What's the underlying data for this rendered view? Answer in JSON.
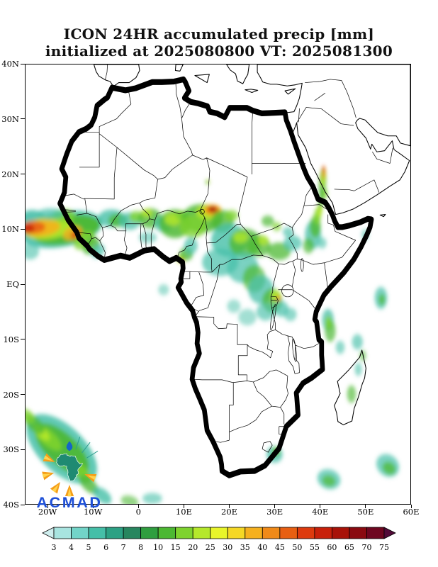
{
  "title": {
    "line1": "ICON 24HR accumulated precip [mm]",
    "line2": "initialized at 2025080800 VT: 2025081300"
  },
  "logo": {
    "text": "ACMAD"
  },
  "axes": {
    "x": [
      {
        "label": "20W",
        "lon": -20
      },
      {
        "label": "10W",
        "lon": -10
      },
      {
        "label": "0",
        "lon": 0
      },
      {
        "label": "10E",
        "lon": 10
      },
      {
        "label": "20E",
        "lon": 20
      },
      {
        "label": "30E",
        "lon": 30
      },
      {
        "label": "40E",
        "lon": 40
      },
      {
        "label": "50E",
        "lon": 50
      },
      {
        "label": "60E",
        "lon": 60
      }
    ],
    "y": [
      {
        "label": "40N",
        "lat": 40
      },
      {
        "label": "30N",
        "lat": 30
      },
      {
        "label": "20N",
        "lat": 20
      },
      {
        "label": "10N",
        "lat": 10
      },
      {
        "label": "EQ",
        "lat": 0
      },
      {
        "label": "10S",
        "lat": -10
      },
      {
        "label": "20S",
        "lat": -20
      },
      {
        "label": "30S",
        "lat": -30
      },
      {
        "label": "40S",
        "lat": -40
      }
    ]
  },
  "colorbar": {
    "labels": [
      "3",
      "4",
      "5",
      "6",
      "7",
      "8",
      "10",
      "15",
      "20",
      "25",
      "30",
      "35",
      "40",
      "45",
      "50",
      "55",
      "60",
      "65",
      "70",
      "75"
    ],
    "colors": [
      "#cfeeee",
      "#a8e4e0",
      "#72d4c8",
      "#45bfa8",
      "#2ca184",
      "#27865f",
      "#2f9e3f",
      "#4cb832",
      "#7ed32e",
      "#b5e82b",
      "#e8f52a",
      "#f5d825",
      "#f5b01e",
      "#f08a18",
      "#e85f12",
      "#dd3a0e",
      "#c8200a",
      "#a81208",
      "#8a0a10",
      "#6e0620",
      "#520a38"
    ]
  },
  "chart_data": {
    "type": "heatmap",
    "title": "ICON 24HR accumulated precip [mm]",
    "subtitle": "initialized at 2025080800 VT: 2025081300",
    "model": "ICON",
    "accumulation": "24HR",
    "units": "mm",
    "init_time": "2025080800",
    "valid_time": "2025081300",
    "lon_range": [
      -25,
      60
    ],
    "lat_range": [
      -40,
      40
    ],
    "levels": [
      3,
      4,
      5,
      6,
      7,
      8,
      10,
      15,
      20,
      25,
      30,
      35,
      40,
      45,
      50,
      55,
      60,
      65,
      70,
      75
    ],
    "precip_features": [
      [
        -17,
        10,
        9,
        3.2,
        -8,
        "#45bfa8",
        0.9
      ],
      [
        -23.5,
        11,
        3.5,
        2.5,
        0,
        "#45bfa8",
        0.9
      ],
      [
        -16,
        9.9,
        7.5,
        2.6,
        -8,
        "#4cb832",
        0.95
      ],
      [
        -20,
        10.2,
        5.5,
        2,
        -5,
        "#b5e82b",
        0.9
      ],
      [
        -21.5,
        10.2,
        4.2,
        1.5,
        -5,
        "#f5b01e",
        0.9
      ],
      [
        -23.2,
        10.4,
        2.6,
        1.1,
        0,
        "#e85f12",
        0.9
      ],
      [
        -24.4,
        10.1,
        1.4,
        0.8,
        0,
        "#c8200a",
        0.9
      ],
      [
        -14.6,
        9.3,
        2.2,
        1.2,
        -15,
        "#f5b01e",
        0.85
      ],
      [
        -13.8,
        9,
        1.2,
        0.7,
        -15,
        "#dd3a0e",
        0.85
      ],
      [
        -12,
        8,
        2.5,
        1.5,
        -25,
        "#7ed32e",
        0.8
      ],
      [
        -10.5,
        7,
        2,
        1.4,
        -30,
        "#4cb832",
        0.8
      ],
      [
        -16.5,
        12.5,
        2.5,
        1.2,
        0,
        "#7ed32e",
        0.7
      ],
      [
        -19.5,
        12.8,
        3,
        1,
        0,
        "#45bfa8",
        0.7
      ],
      [
        -9,
        6,
        1.6,
        1.1,
        -30,
        "#45bfa8",
        0.7
      ],
      [
        -24,
        6,
        2,
        1.5,
        0,
        "#45bfa8",
        0.6
      ],
      [
        -6,
        12,
        3,
        1.6,
        0,
        "#45bfa8",
        0.8
      ],
      [
        -4.5,
        11.6,
        2.2,
        1.2,
        0,
        "#4cb832",
        0.8
      ],
      [
        -2,
        11.5,
        2.4,
        1.6,
        0,
        "#45bfa8",
        0.75
      ],
      [
        -0.5,
        12.3,
        1.6,
        1,
        0,
        "#7ed32e",
        0.8
      ],
      [
        2.5,
        12,
        2.6,
        1.8,
        0,
        "#4cb832",
        0.8
      ],
      [
        1.8,
        13,
        1.2,
        0.7,
        0,
        "#b5e82b",
        0.85
      ],
      [
        5.5,
        11,
        2,
        1.5,
        0,
        "#45bfa8",
        0.75
      ],
      [
        8,
        11,
        3.5,
        2.6,
        0,
        "#4cb832",
        0.85
      ],
      [
        7.5,
        11.8,
        1.8,
        1.1,
        0,
        "#b5e82b",
        0.85
      ],
      [
        9.5,
        12.5,
        1.4,
        0.9,
        0,
        "#7ed32e",
        0.8
      ],
      [
        2,
        8.5,
        2,
        1,
        0,
        "#45bfa8",
        0.55
      ],
      [
        14,
        12,
        4.5,
        2.6,
        0,
        "#4cb832",
        0.85
      ],
      [
        15.5,
        13.1,
        2.8,
        1.4,
        0,
        "#b5e82b",
        0.9
      ],
      [
        16.3,
        13.5,
        2,
        1,
        0,
        "#f5b01e",
        0.9
      ],
      [
        16.3,
        13.6,
        1.3,
        0.65,
        0,
        "#dd3a0e",
        0.95
      ],
      [
        16.3,
        13.65,
        0.7,
        0.38,
        0,
        "#8a0a10",
        0.95
      ],
      [
        12,
        10.5,
        3,
        2,
        0,
        "#7ed32e",
        0.8
      ],
      [
        18.5,
        11.5,
        2.5,
        2,
        0,
        "#4cb832",
        0.8
      ],
      [
        20.5,
        12.5,
        1.5,
        1,
        0,
        "#7ed32e",
        0.75
      ],
      [
        15.2,
        18.6,
        0.5,
        0.4,
        0,
        "#4cb832",
        0.85
      ],
      [
        15.3,
        18.7,
        0.25,
        0.2,
        0,
        "#e8f52a",
        0.9
      ],
      [
        20,
        8,
        4,
        3,
        0,
        "#45bfa8",
        0.8
      ],
      [
        23.5,
        7.5,
        3.5,
        2.6,
        0,
        "#4cb832",
        0.8
      ],
      [
        22.5,
        8.5,
        1.6,
        1,
        0,
        "#b5e82b",
        0.8
      ],
      [
        26.5,
        7,
        2.6,
        2,
        0,
        "#4cb832",
        0.75
      ],
      [
        27.5,
        8,
        1.2,
        0.8,
        0,
        "#b5e82b",
        0.8
      ],
      [
        18,
        4,
        4,
        2.5,
        0,
        "#45bfa8",
        0.7
      ],
      [
        23,
        3,
        3.5,
        2.8,
        0,
        "#45bfa8",
        0.7
      ],
      [
        25.5,
        1,
        2.5,
        2.5,
        0,
        "#4cb832",
        0.7
      ],
      [
        27,
        -1,
        2.8,
        2.6,
        0,
        "#45bfa8",
        0.75
      ],
      [
        29.5,
        -3,
        2.2,
        2.2,
        0,
        "#4cb832",
        0.75
      ],
      [
        30.3,
        -2,
        1.1,
        0.9,
        0,
        "#b5e82b",
        0.85
      ],
      [
        30.8,
        -2.6,
        0.55,
        0.45,
        0,
        "#f08a18",
        0.9
      ],
      [
        31.5,
        -4.5,
        1.6,
        1.4,
        0,
        "#45bfa8",
        0.7
      ],
      [
        33.5,
        -5.5,
        1.4,
        1.2,
        0,
        "#45bfa8",
        0.6
      ],
      [
        28,
        -5,
        2,
        1.6,
        0,
        "#45bfa8",
        0.65
      ],
      [
        24,
        -6,
        2,
        1.5,
        0,
        "#45bfa8",
        0.5
      ],
      [
        21,
        -4,
        1.5,
        1.2,
        0,
        "#45bfa8",
        0.5
      ],
      [
        31,
        6,
        2.6,
        1.6,
        0,
        "#4cb832",
        0.75
      ],
      [
        34,
        7.5,
        2,
        1.4,
        0,
        "#45bfa8",
        0.7
      ],
      [
        33,
        9.5,
        1.2,
        0.9,
        0,
        "#45bfa8",
        0.65
      ],
      [
        28.5,
        11.5,
        1.4,
        1,
        0,
        "#4cb832",
        0.7
      ],
      [
        30.5,
        10.5,
        1,
        0.8,
        0,
        "#7ed32e",
        0.7
      ],
      [
        9.3,
        4.6,
        1,
        0.7,
        0,
        "#b5e82b",
        0.85
      ],
      [
        9.5,
        4.3,
        0.5,
        0.35,
        0,
        "#f08a18",
        0.85
      ],
      [
        10.5,
        5.5,
        1.5,
        1.2,
        0,
        "#4cb832",
        0.8
      ],
      [
        11.5,
        7,
        1.5,
        1.5,
        0,
        "#45bfa8",
        0.7
      ],
      [
        5.5,
        -1,
        1.2,
        1,
        0,
        "#45bfa8",
        0.5
      ],
      [
        38.5,
        9,
        1.8,
        2.6,
        0,
        "#45bfa8",
        0.75
      ],
      [
        39,
        10.5,
        1.2,
        2,
        0,
        "#4cb832",
        0.8
      ],
      [
        39.5,
        12.5,
        0.8,
        1.6,
        10,
        "#7ed32e",
        0.85
      ],
      [
        40,
        13.5,
        0.6,
        1.2,
        10,
        "#b5e82b",
        0.85
      ],
      [
        40.3,
        15.5,
        0.5,
        1.8,
        8,
        "#4cb832",
        0.8
      ],
      [
        40.6,
        18.5,
        0.8,
        2.8,
        5,
        "#4cb832",
        0.8
      ],
      [
        40.8,
        19.5,
        0.5,
        1.8,
        5,
        "#b5e82b",
        0.85
      ],
      [
        40.9,
        20.3,
        0.35,
        1.1,
        5,
        "#f08a18",
        0.85
      ],
      [
        40.8,
        21,
        0.25,
        0.6,
        5,
        "#dd3a0e",
        0.85
      ],
      [
        41.2,
        16.5,
        0.5,
        1,
        0,
        "#7ed32e",
        0.8
      ],
      [
        37.5,
        7,
        1.2,
        1.4,
        0,
        "#4cb832",
        0.7
      ],
      [
        40.5,
        7.5,
        1,
        1,
        0,
        "#45bfa8",
        0.6
      ],
      [
        50,
        9,
        0.8,
        1,
        0,
        "#45bfa8",
        0.55
      ],
      [
        41.8,
        -6.5,
        1.3,
        2,
        0,
        "#45bfa8",
        0.75
      ],
      [
        42.3,
        -8.5,
        1.2,
        2,
        0,
        "#4cb832",
        0.7
      ],
      [
        41.9,
        -7,
        0.7,
        1.2,
        0,
        "#7ed32e",
        0.8
      ],
      [
        44.5,
        -11.5,
        1,
        1.2,
        0,
        "#45bfa8",
        0.6
      ],
      [
        48.3,
        -10.5,
        1.2,
        1.4,
        0,
        "#45bfa8",
        0.65
      ],
      [
        53.5,
        -2.5,
        1.4,
        2,
        0,
        "#45bfa8",
        0.7
      ],
      [
        53.7,
        -2.8,
        0.7,
        1,
        0,
        "#4cb832",
        0.75
      ],
      [
        47,
        -20,
        1,
        1.6,
        0,
        "#4cb832",
        0.65
      ],
      [
        48.5,
        -15.5,
        0.8,
        1.2,
        0,
        "#45bfa8",
        0.6
      ],
      [
        49.5,
        -13,
        0.7,
        1,
        0,
        "#4cb832",
        0.6
      ],
      [
        55,
        -33,
        2.6,
        2,
        20,
        "#45bfa8",
        0.7
      ],
      [
        55.3,
        -33.5,
        1.5,
        1.1,
        20,
        "#4cb832",
        0.75
      ],
      [
        42,
        -35.5,
        2.6,
        1.8,
        10,
        "#45bfa8",
        0.7
      ],
      [
        42,
        -35.8,
        1.5,
        1,
        10,
        "#4cb832",
        0.7
      ],
      [
        30,
        -31,
        1.8,
        1.5,
        0,
        "#45bfa8",
        0.75
      ],
      [
        30.3,
        -30.5,
        0.9,
        0.8,
        0,
        "#4cb832",
        0.8
      ],
      [
        30.5,
        -30.3,
        0.45,
        0.4,
        0,
        "#b5e82b",
        0.85
      ],
      [
        -17,
        -30,
        9,
        4.5,
        35,
        "#45bfa8",
        0.85
      ],
      [
        -17,
        -30,
        7,
        3,
        35,
        "#4cb832",
        0.9
      ],
      [
        -20,
        -28,
        3.5,
        1.4,
        35,
        "#7ed32e",
        0.9
      ],
      [
        -21.5,
        -27,
        2.2,
        0.9,
        35,
        "#b5e82b",
        0.9
      ],
      [
        -13,
        -34,
        3,
        1.2,
        35,
        "#7ed32e",
        0.85
      ],
      [
        -11,
        -36.5,
        2.5,
        1.2,
        35,
        "#4cb832",
        0.8
      ],
      [
        -8,
        -38.5,
        2.2,
        1.2,
        30,
        "#45bfa8",
        0.8
      ],
      [
        -23,
        -25.5,
        2.5,
        1.3,
        35,
        "#4cb832",
        0.8
      ],
      [
        -24.5,
        -24,
        1.8,
        1,
        35,
        "#7ed32e",
        0.8
      ],
      [
        3,
        -39,
        2.2,
        1,
        0,
        "#45bfa8",
        0.6
      ],
      [
        -2,
        -39.5,
        2,
        1,
        10,
        "#4cb832",
        0.6
      ]
    ]
  }
}
